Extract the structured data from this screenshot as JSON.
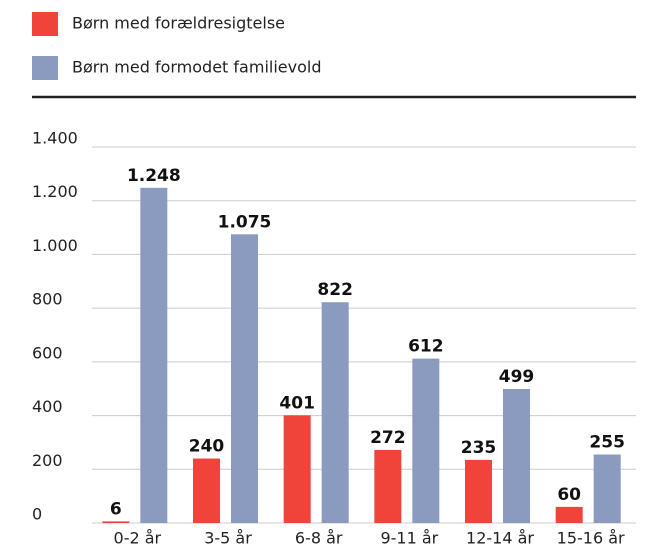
{
  "chart_data": {
    "type": "bar",
    "categories": [
      "0-2 år",
      "3-5 år",
      "6-8 år",
      "9-11 år",
      "12-14 år",
      "15-16 år"
    ],
    "series": [
      {
        "name": "Børn med forældresigtelse",
        "color": "#f0433a",
        "values": [
          6,
          240,
          401,
          272,
          235,
          60
        ]
      },
      {
        "name": "Børn med formodet familievold",
        "color": "#8a9bbf",
        "values": [
          1248,
          1075,
          822,
          612,
          499,
          255
        ],
        "value_labels": [
          "1.248",
          "1.075",
          "822",
          "612",
          "499",
          "255"
        ]
      }
    ],
    "ylim": [
      0,
      1400
    ],
    "yticks": [
      0,
      200,
      400,
      600,
      800,
      {
        "value": 1000,
        "label": "1.000"
      },
      {
        "value": 1200,
        "label": "1.200"
      },
      {
        "value": 1400,
        "label": "1.400"
      }
    ],
    "grid": true,
    "legend": "top-left"
  }
}
